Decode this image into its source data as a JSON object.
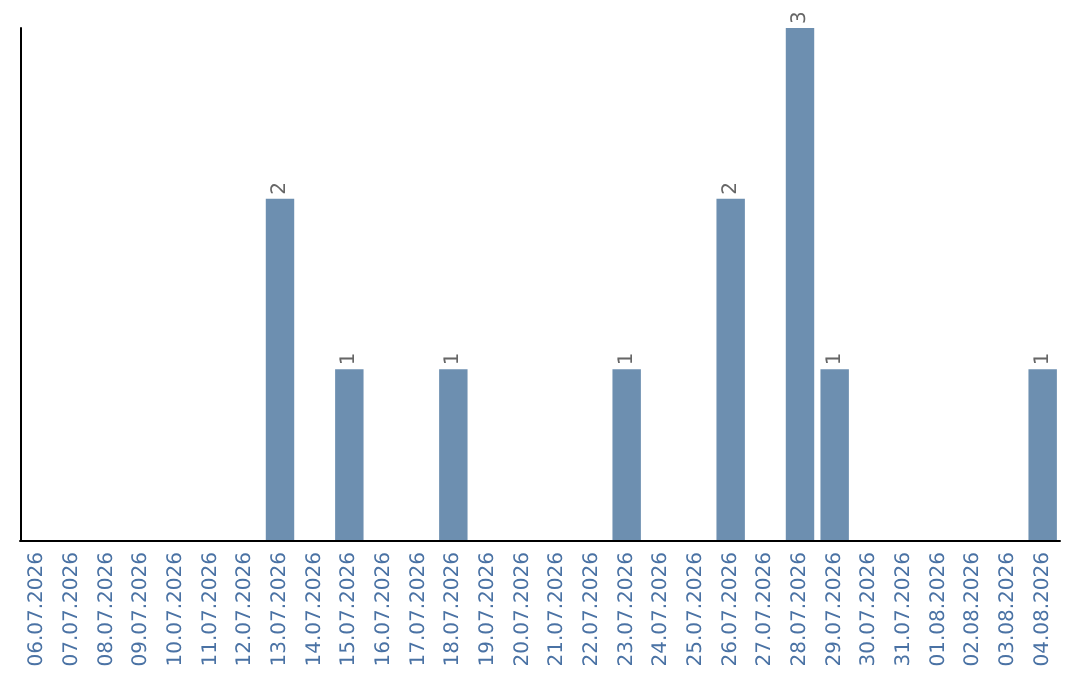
{
  "chart_data": {
    "type": "bar",
    "categories": [
      "06.07.2026",
      "07.07.2026",
      "08.07.2026",
      "09.07.2026",
      "10.07.2026",
      "11.07.2026",
      "12.07.2026",
      "13.07.2026",
      "14.07.2026",
      "15.07.2026",
      "16.07.2026",
      "17.07.2026",
      "18.07.2026",
      "19.07.2026",
      "20.07.2026",
      "21.07.2026",
      "22.07.2026",
      "23.07.2026",
      "24.07.2026",
      "25.07.2026",
      "26.07.2026",
      "27.07.2026",
      "28.07.2026",
      "29.07.2026",
      "30.07.2026",
      "31.07.2026",
      "01.08.2026",
      "02.08.2026",
      "03.08.2026",
      "04.08.2026"
    ],
    "values": [
      0,
      0,
      0,
      0,
      0,
      0,
      0,
      2,
      0,
      1,
      0,
      0,
      1,
      0,
      0,
      0,
      0,
      1,
      0,
      0,
      2,
      0,
      3,
      1,
      0,
      0,
      0,
      0,
      0,
      1
    ],
    "value_labels": [
      null,
      null,
      null,
      null,
      null,
      null,
      null,
      "2",
      null,
      "1",
      null,
      null,
      "1",
      null,
      null,
      null,
      null,
      "1",
      null,
      null,
      "2",
      null,
      "3",
      "1",
      null,
      null,
      null,
      null,
      null,
      "1"
    ],
    "color": "#6d8fb0",
    "tick_labels": "x"
  }
}
